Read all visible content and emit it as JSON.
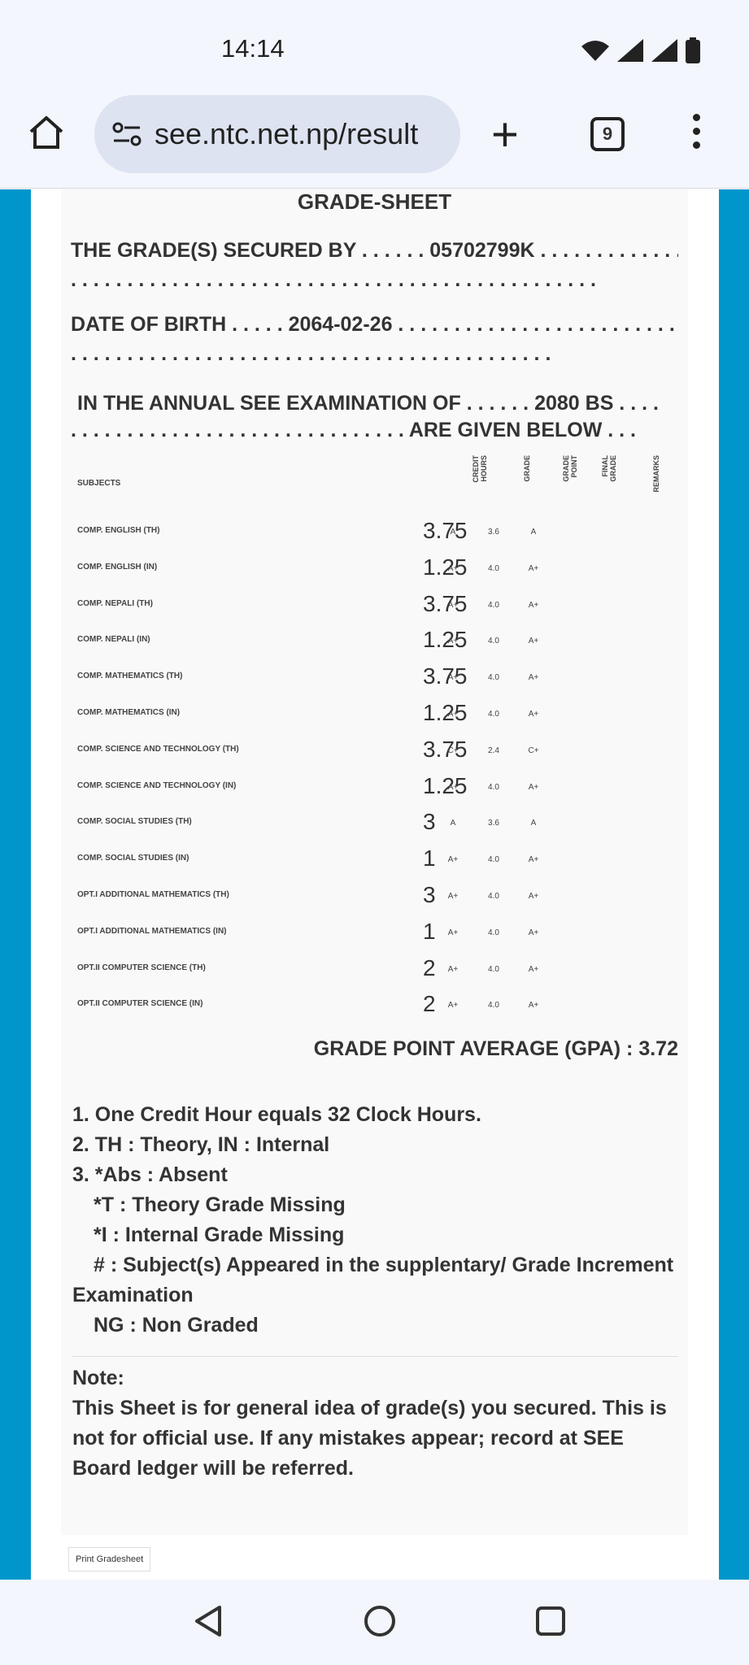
{
  "status": {
    "time": "14:14"
  },
  "browser": {
    "url": "see.ntc.net.np/result",
    "tab_count": "9"
  },
  "sheet": {
    "title": "GRADE-SHEET",
    "secured_by": "THE GRADE(S) SECURED BY . . . . . . 05702799K . . . . . . . . . . . . . . . . . . . . . . . . . . . . . . . . . . . . . . . . . . . . . . . . . . . . . . . . . . . .",
    "dob": "DATE OF BIRTH . . . . . 2064-02-26 . . . . . . . . . . . . . . . . . . . . . . . . . . . . . . . . . . . . . . . . . . . . . . . . . . . . . . . . . . . . .",
    "exam1": "IN THE ANNUAL SEE EXAMINATION OF . . . . . . 2080 BS . . . .",
    "exam2": ". . . . . . . . . . . . . . . . . . . . . . . . . . . . . . ARE GIVEN BELOW . . .",
    "headers": {
      "subjects": "SUBJECTS",
      "credit": "CREDIT HOURS",
      "grade": "GRADE",
      "gp": "GRADE POINT",
      "final": "FINAL GRADE",
      "remarks": "REMARKS"
    },
    "rows": [
      {
        "subject": "COMP. ENGLISH (TH)",
        "credit": "3.75",
        "grade": "A",
        "gp": "3.6",
        "final": "A"
      },
      {
        "subject": "COMP. ENGLISH (IN)",
        "credit": "1.25",
        "grade": "A+",
        "gp": "4.0",
        "final": "A+"
      },
      {
        "subject": "COMP. NEPALI (TH)",
        "credit": "3.75",
        "grade": "A+",
        "gp": "4.0",
        "final": "A+"
      },
      {
        "subject": "COMP. NEPALI (IN)",
        "credit": "1.25",
        "grade": "A+",
        "gp": "4.0",
        "final": "A+"
      },
      {
        "subject": "COMP. MATHEMATICS (TH)",
        "credit": "3.75",
        "grade": "A+",
        "gp": "4.0",
        "final": "A+"
      },
      {
        "subject": "COMP. MATHEMATICS (IN)",
        "credit": "1.25",
        "grade": "A+",
        "gp": "4.0",
        "final": "A+"
      },
      {
        "subject": "COMP. SCIENCE AND TECHNOLOGY (TH)",
        "credit": "3.75",
        "grade": "C+",
        "gp": "2.4",
        "final": "C+"
      },
      {
        "subject": "COMP. SCIENCE AND TECHNOLOGY (IN)",
        "credit": "1.25",
        "grade": "A+",
        "gp": "4.0",
        "final": "A+"
      },
      {
        "subject": "COMP. SOCIAL STUDIES (TH)",
        "credit": "3",
        "grade": "A",
        "gp": "3.6",
        "final": "A"
      },
      {
        "subject": "COMP. SOCIAL STUDIES (IN)",
        "credit": "1",
        "grade": "A+",
        "gp": "4.0",
        "final": "A+"
      },
      {
        "subject": "OPT.I ADDITIONAL MATHEMATICS (TH)",
        "credit": "3",
        "grade": "A+",
        "gp": "4.0",
        "final": "A+"
      },
      {
        "subject": "OPT.I ADDITIONAL MATHEMATICS (IN)",
        "credit": "1",
        "grade": "A+",
        "gp": "4.0",
        "final": "A+"
      },
      {
        "subject": "OPT.II COMPUTER SCIENCE (TH)",
        "credit": "2",
        "grade": "A+",
        "gp": "4.0",
        "final": "A+"
      },
      {
        "subject": "OPT.II COMPUTER SCIENCE (IN)",
        "credit": "2",
        "grade": "A+",
        "gp": "4.0",
        "final": "A+"
      }
    ],
    "gpa": "GRADE POINT AVERAGE (GPA) : 3.72",
    "notes": [
      "1. One Credit Hour equals 32 Clock Hours.",
      "2. TH : Theory, IN : Internal",
      "3. *Abs : Absent",
      "*T : Theory Grade Missing",
      "*I : Internal Grade Missing",
      "# : Subject(s) Appeared in the supplentary/ Grade Increment",
      "Examination",
      "NG : Non Graded"
    ],
    "note_title": "Note:",
    "note_text": "This Sheet is for general idea of grade(s) you secured. This is not for official use. If any mistakes appear; record at SEE Board ledger will be referred.",
    "print_label": "Print Gradesheet"
  },
  "colors": {
    "side": "#0096cc"
  }
}
